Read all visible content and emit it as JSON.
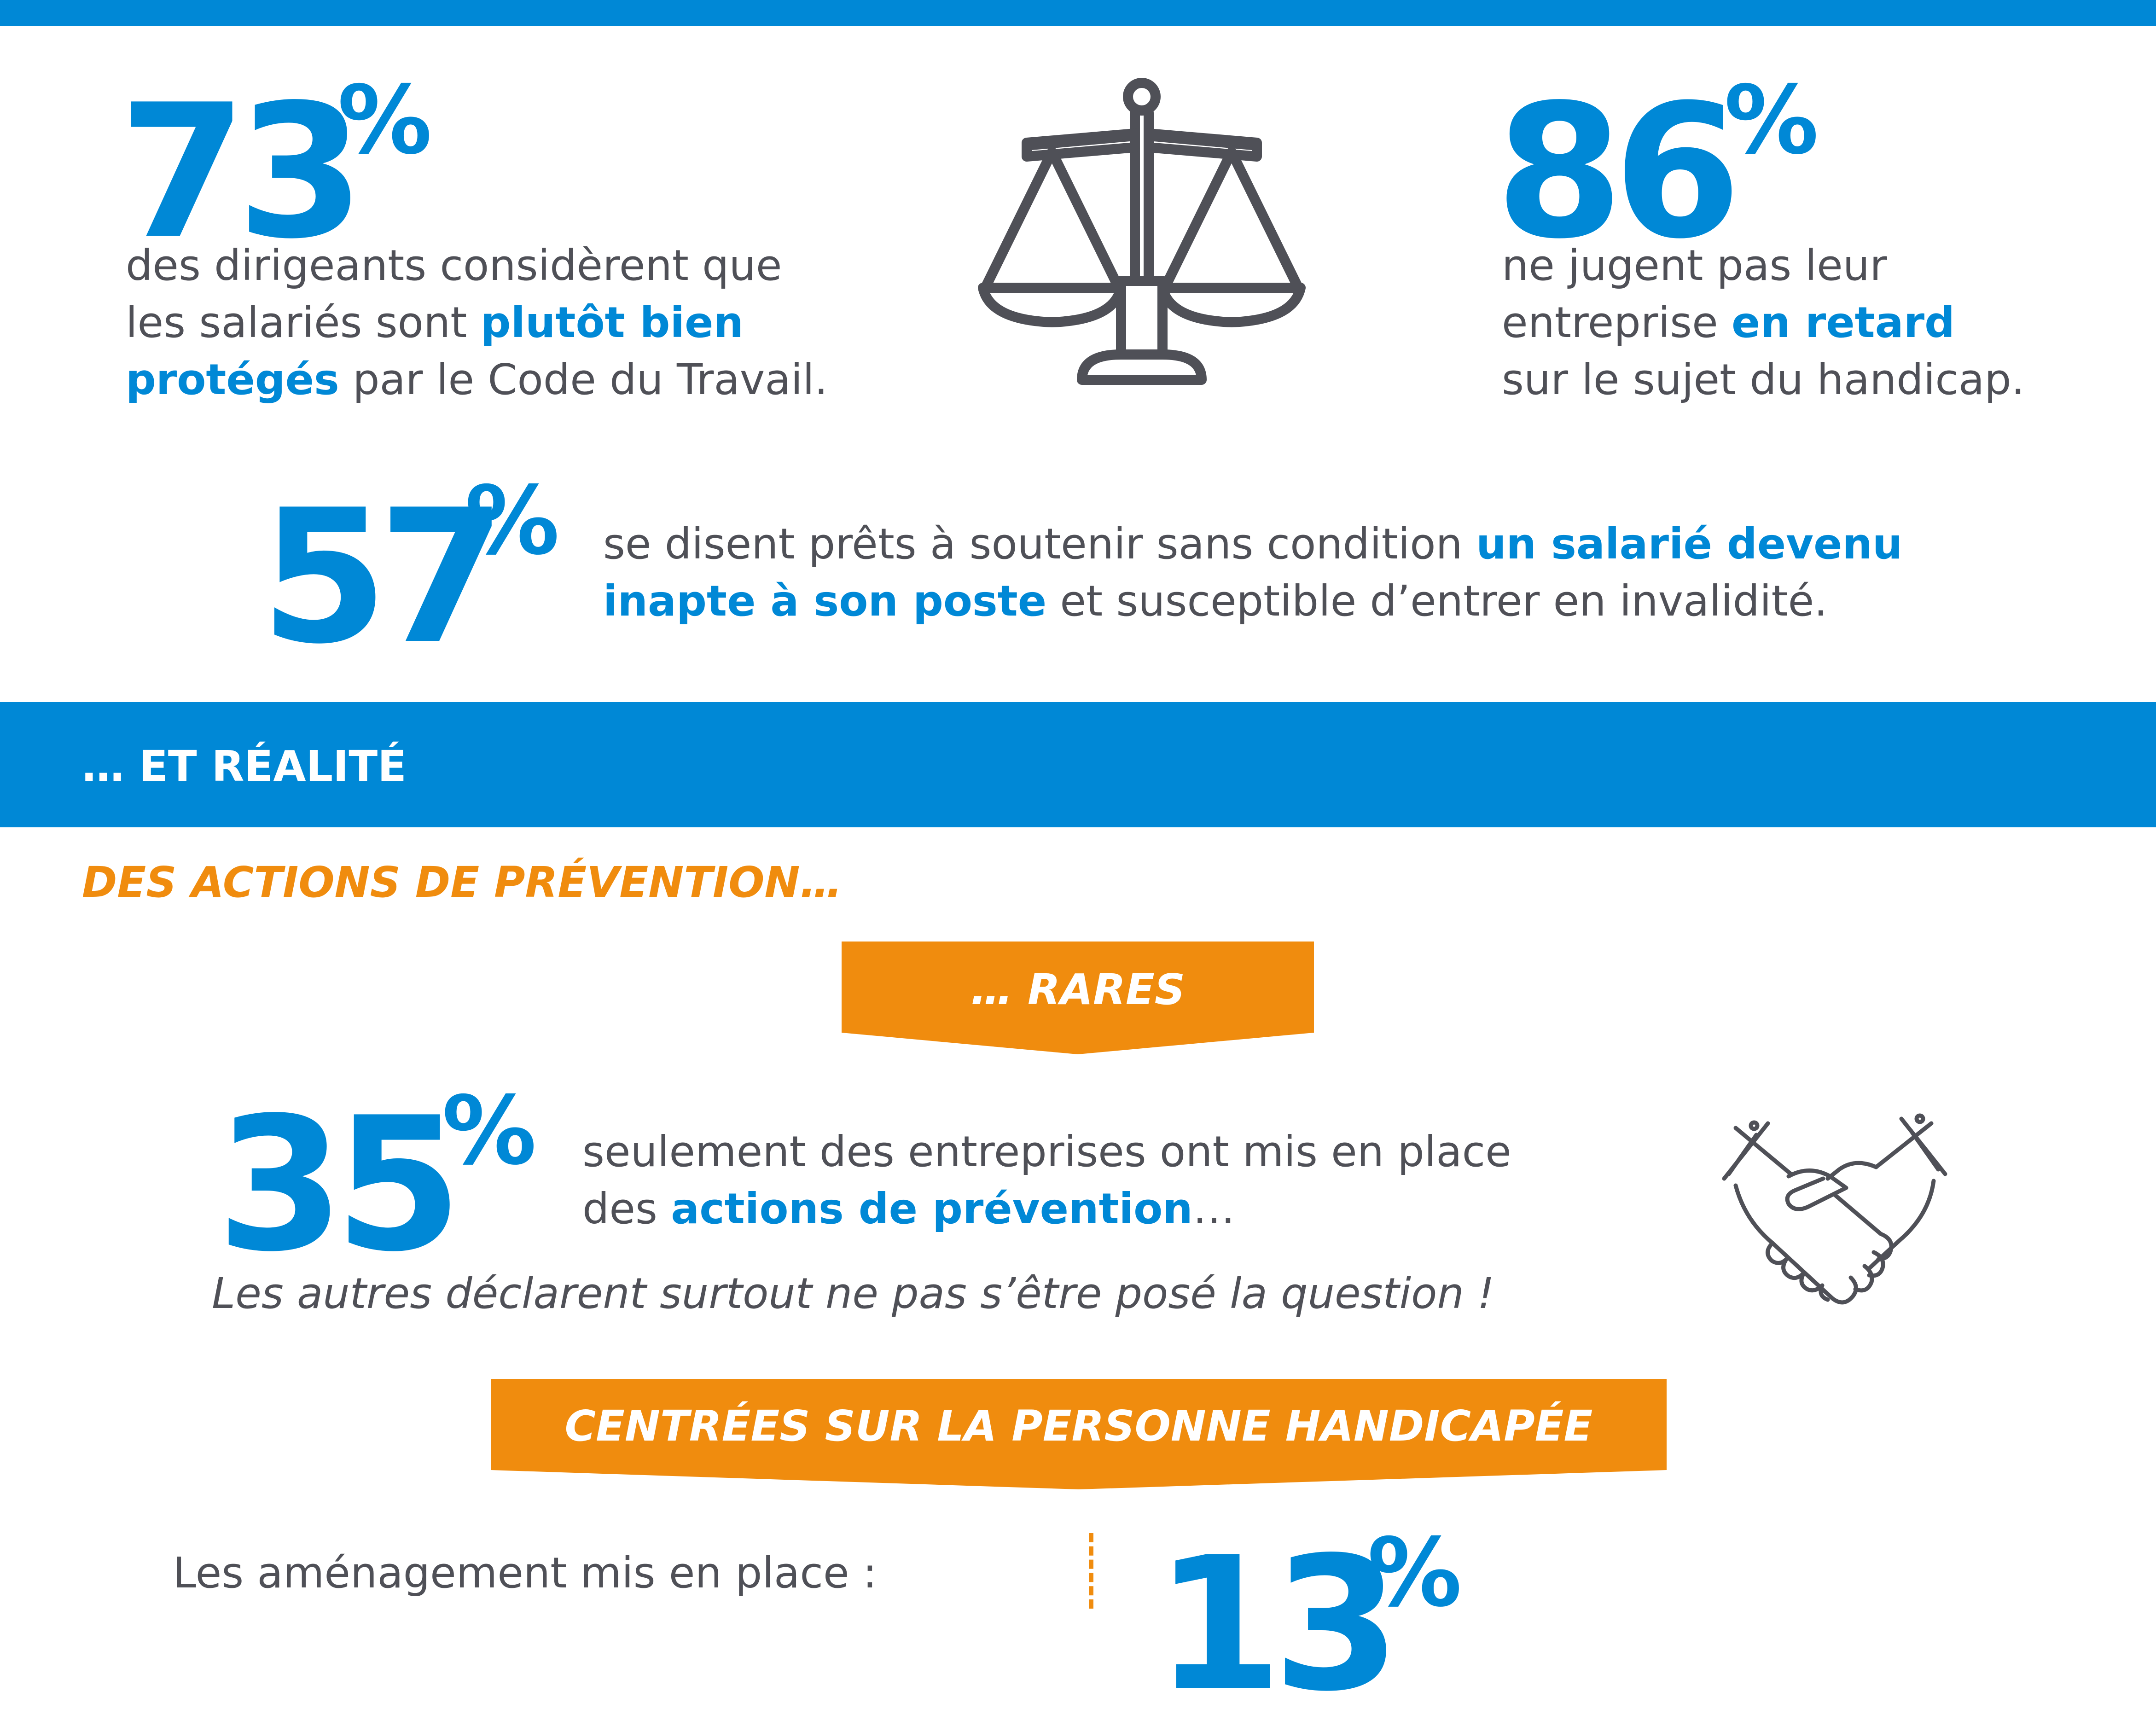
{
  "colors": {
    "blue": "#0088d6",
    "orange": "#f08c0e",
    "gray": "#4f5057"
  },
  "stat73": {
    "number": "73",
    "percent": "%",
    "line1": "des dirigeants considèrent que",
    "line2_pre": "les salariés sont ",
    "line2_bold": "plutôt bien",
    "line3_bold": "protégés",
    "line3_post": " par le Code du Travail."
  },
  "scale_icon": "balance-scale-icon",
  "stat86": {
    "number": "86",
    "percent": "%",
    "line1": "ne jugent pas leur",
    "line2_pre": "entreprise ",
    "line2_bold": "en retard",
    "line3": "sur le sujet du handicap."
  },
  "stat57": {
    "number": "57",
    "percent": "%",
    "line1_pre": "se disent prêts à soutenir sans condition ",
    "line1_bold": "un salarié devenu",
    "line2_bold": "inapte à son poste",
    "line2_post": " et susceptible d’entrer en invalidité."
  },
  "section_band": {
    "title": "… ET RÉALITÉ"
  },
  "prevention": {
    "heading": "DES ACTIONS DE PRÉVENTION…",
    "banner_rares": "… RARES",
    "banner_centrees": "CENTRÉES SUR LA PERSONNE HANDICAPÉE"
  },
  "stat35": {
    "number": "35",
    "percent": "%",
    "line1": "seulement des entreprises ont mis en place",
    "line2_pre": "des ",
    "line2_bold": "actions de prévention",
    "line2_post": "…",
    "note": "Les autres déclarent surtout ne pas s’être posé la question !"
  },
  "handshake_icon": "handshake-icon",
  "amenagement": {
    "label": "Les aménagement mis en place :",
    "number": "13",
    "percent": "%"
  }
}
